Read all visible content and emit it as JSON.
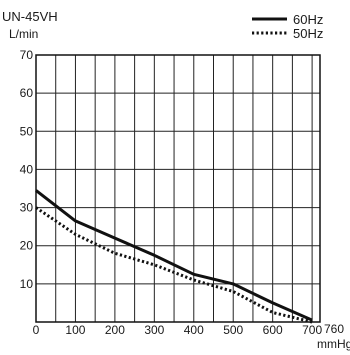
{
  "chart_data": {
    "type": "line",
    "title": "UN-45VH",
    "ylabel": "L/min",
    "xlabel": "mmHg",
    "xlim": [
      0,
      720
    ],
    "ylim": [
      0,
      70
    ],
    "x_ticks": [
      0,
      100,
      200,
      300,
      400,
      500,
      600,
      700
    ],
    "x_extra_tick_label": "760",
    "y_ticks": [
      10,
      20,
      30,
      40,
      50,
      60,
      70
    ],
    "grid": true,
    "legend_position": "top-right",
    "series": [
      {
        "name": "60Hz",
        "style": "solid",
        "points": [
          [
            0,
            34.5
          ],
          [
            100,
            26.5
          ],
          [
            200,
            22
          ],
          [
            300,
            17.5
          ],
          [
            400,
            12.5
          ],
          [
            500,
            10
          ],
          [
            600,
            5
          ],
          [
            700,
            0.5
          ]
        ]
      },
      {
        "name": "50Hz",
        "style": "dotted",
        "points": [
          [
            0,
            30
          ],
          [
            100,
            23
          ],
          [
            200,
            18
          ],
          [
            300,
            15
          ],
          [
            400,
            11
          ],
          [
            500,
            8
          ],
          [
            600,
            2.5
          ],
          [
            700,
            0
          ]
        ]
      }
    ]
  }
}
